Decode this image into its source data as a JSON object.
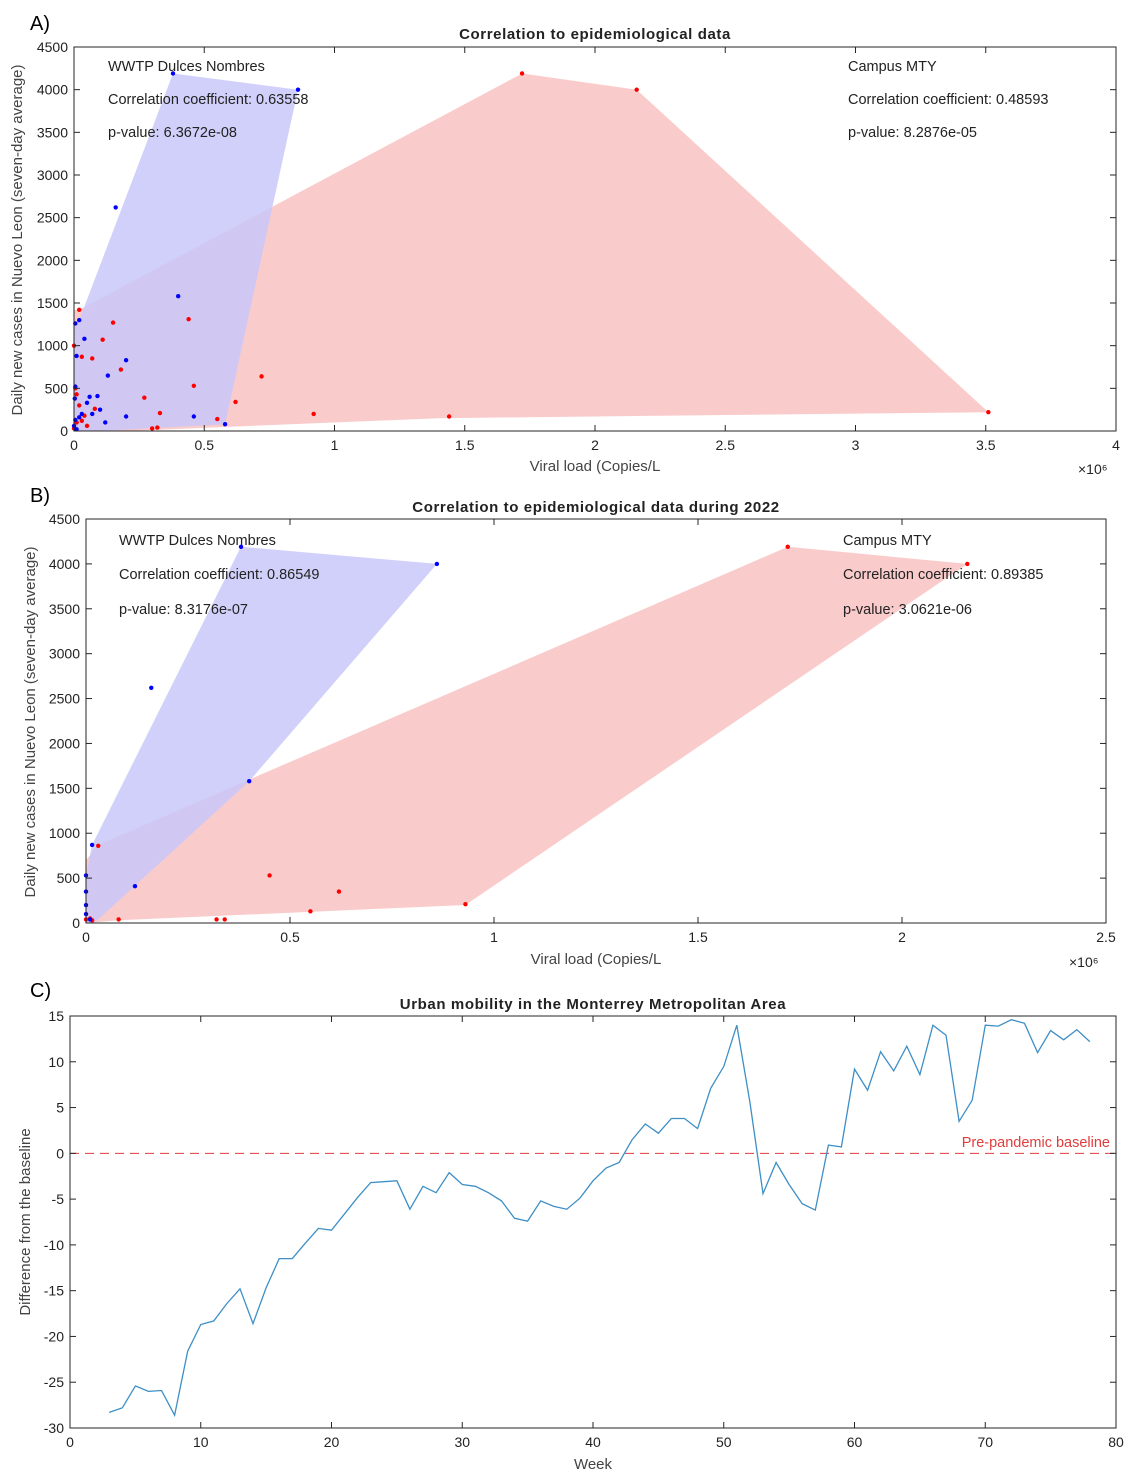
{
  "chart_data": [
    {
      "panel_label": "A)",
      "type": "scatter",
      "title": "Correlation to epidemiological data",
      "xlabel": "Viral load (Copies/L",
      "ylabel": "Daily new cases in Nuevo Leon (seven-day average)",
      "xlim": [
        0,
        4000000
      ],
      "ylim": [
        0,
        4500
      ],
      "x_ticks": [
        0,
        0.5,
        1,
        1.5,
        2,
        2.5,
        3,
        3.5,
        4
      ],
      "y_ticks": [
        0,
        500,
        1000,
        1500,
        2000,
        2500,
        3000,
        3500,
        4000,
        4500
      ],
      "x_exponent": "×10⁶",
      "annotations": [
        {
          "group": "WWTP Dulces Nombres",
          "coef_label": "Correlation coefficient: 0.63558",
          "p_label": "p-value: 6.3672e-08"
        },
        {
          "group": "Campus MTY",
          "coef_label": "Correlation coefficient: 0.48593",
          "p_label": "p-value: 8.2876e-05"
        }
      ],
      "series": [
        {
          "name": "WWTP Dulces Nombres",
          "color": "#0000ff",
          "hull_color": "#c8c8fa",
          "hull": [
            [
              0,
              0
            ],
            [
              0,
              1260
            ],
            [
              20000,
              1300
            ],
            [
              380000,
              4190
            ],
            [
              860000,
              4000
            ],
            [
              580000,
              80
            ],
            [
              100000,
              0
            ]
          ],
          "points": [
            [
              380000,
              4190
            ],
            [
              860000,
              4000
            ],
            [
              160000,
              2620
            ],
            [
              400000,
              1580
            ],
            [
              20000,
              1300
            ],
            [
              5000,
              1260
            ],
            [
              130000,
              650
            ],
            [
              200000,
              830
            ],
            [
              40000,
              1080
            ],
            [
              10000,
              880
            ],
            [
              5000,
              520
            ],
            [
              3000,
              380
            ],
            [
              60000,
              400
            ],
            [
              90000,
              410
            ],
            [
              50000,
              330
            ],
            [
              30000,
              200
            ],
            [
              20000,
              160
            ],
            [
              70000,
              200
            ],
            [
              100000,
              250
            ],
            [
              120000,
              100
            ],
            [
              200000,
              170
            ],
            [
              460000,
              170
            ],
            [
              580000,
              80
            ],
            [
              0,
              60
            ],
            [
              10000,
              20
            ],
            [
              5000,
              130
            ]
          ]
        },
        {
          "name": "Campus MTY",
          "color": "#ff0000",
          "hull_color": "#fac8c8",
          "hull": [
            [
              0,
              0
            ],
            [
              0,
              1420
            ],
            [
              20000,
              1420
            ],
            [
              1720000,
              4190
            ],
            [
              2160000,
              4000
            ],
            [
              3510000,
              220
            ],
            [
              1400000,
              150
            ],
            [
              200000,
              0
            ]
          ],
          "points": [
            [
              1720000,
              4190
            ],
            [
              2160000,
              4000
            ],
            [
              3510000,
              220
            ],
            [
              20000,
              1420
            ],
            [
              150000,
              1270
            ],
            [
              440000,
              1310
            ],
            [
              110000,
              1070
            ],
            [
              70000,
              850
            ],
            [
              30000,
              870
            ],
            [
              0,
              1000
            ],
            [
              180000,
              720
            ],
            [
              720000,
              640
            ],
            [
              460000,
              530
            ],
            [
              5000,
              500
            ],
            [
              270000,
              390
            ],
            [
              620000,
              340
            ],
            [
              920000,
              200
            ],
            [
              1440000,
              170
            ],
            [
              330000,
              210
            ],
            [
              550000,
              140
            ],
            [
              10000,
              430
            ],
            [
              20000,
              300
            ],
            [
              40000,
              180
            ],
            [
              10000,
              100
            ],
            [
              50000,
              60
            ],
            [
              0,
              30
            ],
            [
              300000,
              30
            ],
            [
              320000,
              40
            ],
            [
              80000,
              260
            ],
            [
              30000,
              120
            ]
          ]
        }
      ]
    },
    {
      "panel_label": "B)",
      "type": "scatter",
      "title": "Correlation to epidemiological data during 2022",
      "xlabel": "Viral load (Copies/L",
      "ylabel": "Daily new cases in Nuevo Leon (seven-day average)",
      "xlim": [
        0,
        2500000
      ],
      "ylim": [
        0,
        4500
      ],
      "x_ticks": [
        0,
        0.5,
        1,
        1.5,
        2,
        2.5
      ],
      "y_ticks": [
        0,
        500,
        1000,
        1500,
        2000,
        2500,
        3000,
        3500,
        4000,
        4500
      ],
      "x_exponent": "×10⁶",
      "annotations": [
        {
          "group": "WWTP Dulces Nombres",
          "coef_label": "Correlation coefficient: 0.86549",
          "p_label": "p-value: 8.3176e-07"
        },
        {
          "group": "Campus MTY",
          "coef_label": "Correlation coefficient: 0.89385",
          "p_label": "p-value: 3.0621e-06"
        }
      ],
      "series": [
        {
          "name": "WWTP Dulces Nombres",
          "color": "#0000ff",
          "hull_color": "#c8c8fa",
          "hull": [
            [
              0,
              0
            ],
            [
              0,
              530
            ],
            [
              15000,
              870
            ],
            [
              380000,
              4190
            ],
            [
              860000,
              4000
            ],
            [
              400000,
              1580
            ],
            [
              20000,
              0
            ]
          ],
          "points": [
            [
              380000,
              4190
            ],
            [
              860000,
              4000
            ],
            [
              160000,
              2620
            ],
            [
              400000,
              1580
            ],
            [
              15000,
              870
            ],
            [
              0,
              530
            ],
            [
              0,
              350
            ],
            [
              0,
              200
            ],
            [
              120000,
              410
            ],
            [
              0,
              100
            ],
            [
              10000,
              40
            ]
          ]
        },
        {
          "name": "Campus MTY",
          "color": "#ff0000",
          "hull_color": "#fac8c8",
          "hull": [
            [
              0,
              0
            ],
            [
              0,
              700
            ],
            [
              30000,
              870
            ],
            [
              1720000,
              4190
            ],
            [
              2160000,
              4000
            ],
            [
              930000,
              200
            ],
            [
              80000,
              30
            ]
          ],
          "points": [
            [
              1720000,
              4190
            ],
            [
              2160000,
              4000
            ],
            [
              930000,
              210
            ],
            [
              30000,
              860
            ],
            [
              450000,
              530
            ],
            [
              620000,
              350
            ],
            [
              550000,
              130
            ],
            [
              80000,
              40
            ],
            [
              320000,
              40
            ],
            [
              340000,
              40
            ],
            [
              0,
              40
            ],
            [
              10000,
              50
            ],
            [
              15000,
              30
            ]
          ]
        }
      ]
    },
    {
      "panel_label": "C)",
      "type": "line",
      "title": "Urban mobility in the Monterrey Metropolitan Area",
      "xlabel": "Week",
      "ylabel": "Difference from the baseline",
      "xlim": [
        0,
        80
      ],
      "ylim": [
        -30,
        15
      ],
      "x_ticks": [
        0,
        10,
        20,
        30,
        40,
        50,
        60,
        70,
        80
      ],
      "y_ticks": [
        -30,
        -25,
        -20,
        -15,
        -10,
        -5,
        0,
        5,
        10,
        15
      ],
      "baseline": {
        "value": 0,
        "label": "Pre-pandemic baseline",
        "color": "#e03c3c"
      },
      "series": [
        {
          "name": "Urban mobility",
          "color": "#3d8fc6",
          "x": [
            3,
            4,
            5,
            6,
            7,
            8,
            9,
            10,
            11,
            12,
            13,
            14,
            15,
            16,
            17,
            18,
            19,
            20,
            21,
            22,
            23,
            24,
            25,
            26,
            27,
            28,
            29,
            30,
            31,
            32,
            33,
            34,
            35,
            36,
            37,
            38,
            39,
            40,
            41,
            42,
            43,
            44,
            45,
            46,
            47,
            48,
            49,
            50,
            51,
            52,
            53,
            54,
            55,
            56,
            57,
            58,
            59,
            60,
            61,
            62,
            63,
            64,
            65,
            66,
            67,
            68,
            69,
            70,
            71,
            72,
            73,
            74,
            75,
            76,
            77,
            78
          ],
          "y": [
            -28.3,
            -27.8,
            -25.4,
            -26.0,
            -25.9,
            -28.6,
            -21.6,
            -18.7,
            -18.3,
            -16.4,
            -14.8,
            -18.6,
            -14.7,
            -11.5,
            -11.5,
            -9.8,
            -8.2,
            -8.4,
            -6.6,
            -4.8,
            -3.2,
            -3.1,
            -3.0,
            -6.1,
            -3.6,
            -4.3,
            -2.1,
            -3.4,
            -3.6,
            -4.3,
            -5.2,
            -7.1,
            -7.4,
            -5.2,
            -5.8,
            -6.1,
            -4.9,
            -3.0,
            -1.6,
            -1.0,
            1.5,
            3.2,
            2.2,
            3.8,
            3.8,
            2.7,
            7.1,
            9.5,
            14.0,
            5.6,
            -4.4,
            -1.0,
            -3.4,
            -5.5,
            -6.2,
            0.9,
            0.7,
            9.2,
            6.9,
            11.1,
            9.0,
            11.7,
            8.6,
            14.0,
            12.9,
            3.5,
            5.8,
            14.0,
            13.9,
            14.6,
            14.2,
            11.0,
            13.4,
            12.4,
            13.5,
            12.2
          ]
        }
      ]
    }
  ]
}
